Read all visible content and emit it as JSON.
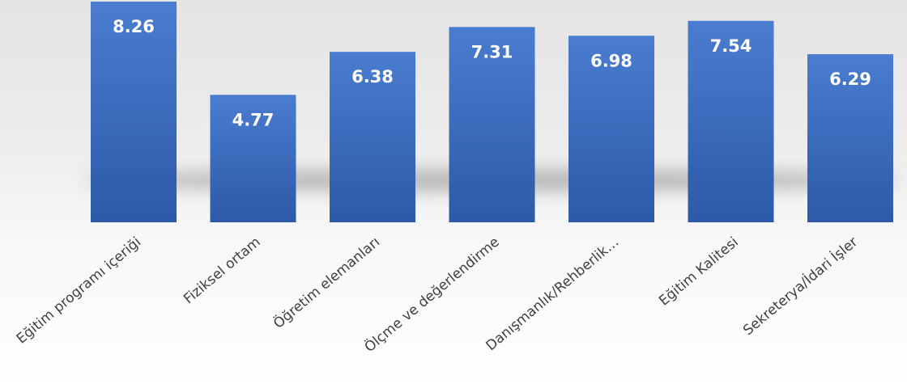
{
  "chart_data": {
    "type": "bar",
    "categories": [
      "Eğitim programı içeriği",
      "Fiziksel ortam",
      "Öğretim elemanları",
      "Ölçme ve değerlendirme",
      "Danışmanlık/Rehberlik…",
      "Eğitim Kalitesi",
      "Sekreterya/İdari İşler"
    ],
    "values": [
      8.26,
      4.77,
      6.38,
      7.31,
      6.98,
      7.54,
      6.29
    ],
    "data_labels": [
      "8.26",
      "4.77",
      "6.38",
      "7.31",
      "6.98",
      "7.54",
      "6.29"
    ],
    "title": "",
    "xlabel": "",
    "ylabel": "",
    "ylim": [
      0,
      8.26
    ],
    "grid": false,
    "legend": "none",
    "colors": {
      "bar_top": "#4a7cd0",
      "bar_bottom": "#2d5aa8",
      "label": "#ffffff",
      "category": "#404040",
      "shadow": "#8a8a8a"
    }
  }
}
